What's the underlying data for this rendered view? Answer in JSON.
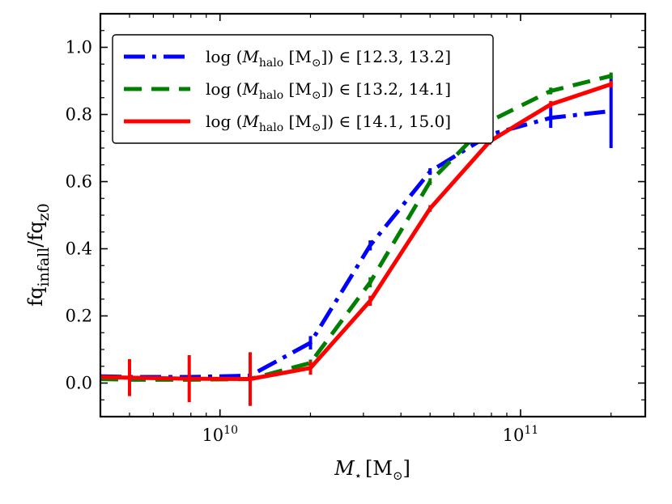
{
  "chart_data": {
    "type": "line",
    "title": "",
    "xscale": "log",
    "xlim": [
      4000000000.0,
      260000000000.0
    ],
    "ylim": [
      -0.1,
      1.1
    ],
    "ylabel": {
      "base": "fq",
      "sub1": "infall",
      "sep": "/fq",
      "sub2": "z0"
    },
    "xlabel": {
      "var": "M",
      "sub": "⋆",
      "unit": "[M",
      "sun": "⊙",
      "close": "]"
    },
    "xticks": [
      {
        "value": 10000000000.0,
        "base": "10",
        "exp": "10"
      },
      {
        "value": 100000000000.0,
        "base": "10",
        "exp": "11"
      }
    ],
    "yticks": [
      {
        "value": 0.0,
        "label": "0.0"
      },
      {
        "value": 0.2,
        "label": "0.2"
      },
      {
        "value": 0.4,
        "label": "0.4"
      },
      {
        "value": 0.6,
        "label": "0.6"
      },
      {
        "value": 0.8,
        "label": "0.8"
      },
      {
        "value": 1.0,
        "label": "1.0"
      }
    ],
    "legend_position": "top-left",
    "series": [
      {
        "name": "log (Mhalo [M⊙]) ∈ [12.3, 13.2]",
        "label_pre": "log (",
        "label_var": "M",
        "label_sub": "halo",
        "label_unit": " [M",
        "label_sun": "⊙",
        "label_post": "])",
        "label_in": "∈",
        "label_range": "[12.3, 13.2]",
        "color": "#0000ff",
        "dash": "26,9,5,9",
        "x": [
          4000000000.0,
          5000000000.0,
          7900000000.0,
          12600000000.0,
          20000000000.0,
          31600000000.0,
          50000000000.0,
          79000000000.0,
          126000000000.0,
          200000000000.0
        ],
        "y": [
          0.02,
          0.018,
          0.018,
          0.022,
          0.12,
          0.41,
          0.63,
          0.74,
          0.79,
          0.81
        ],
        "err": [
          0,
          0,
          0,
          0,
          0.02,
          0.015,
          0.01,
          0.02,
          0.03,
          0.11
        ]
      },
      {
        "name": "log (Mhalo [M⊙]) ∈ [13.2, 14.1]",
        "label_pre": "log (",
        "label_var": "M",
        "label_sub": "halo",
        "label_unit": " [M",
        "label_sun": "⊙",
        "label_post": "])",
        "label_in": "∈",
        "label_range": "[13.2, 14.1]",
        "color": "#008000",
        "dash": "22,12",
        "x": [
          4000000000.0,
          5000000000.0,
          7900000000.0,
          12600000000.0,
          20000000000.0,
          31600000000.0,
          50000000000.0,
          79000000000.0,
          126000000000.0,
          200000000000.0
        ],
        "y": [
          0.012,
          0.01,
          0.01,
          0.012,
          0.06,
          0.3,
          0.6,
          0.78,
          0.87,
          0.915
        ],
        "err": [
          0,
          0,
          0,
          0,
          0.01,
          0.015,
          0.01,
          0.01,
          0.01,
          0.01
        ]
      },
      {
        "name": "log (Mhalo [M⊙]) ∈ [14.1, 15.0]",
        "label_pre": "log (",
        "label_var": "M",
        "label_sub": "halo",
        "label_unit": " [M",
        "label_sun": "⊙",
        "label_post": "])",
        "label_in": "∈",
        "label_range": "[14.1, 15.0]",
        "color": "#ff0000",
        "dash": "",
        "x": [
          4000000000.0,
          5000000000.0,
          7900000000.0,
          12600000000.0,
          20000000000.0,
          31600000000.0,
          50000000000.0,
          79000000000.0,
          126000000000.0,
          200000000000.0
        ],
        "y": [
          0.018,
          0.016,
          0.013,
          0.012,
          0.045,
          0.245,
          0.52,
          0.72,
          0.83,
          0.89
        ],
        "err": [
          0,
          0.055,
          0.07,
          0.08,
          0.02,
          0.015,
          0.01,
          0.01,
          0.01,
          0.01
        ]
      }
    ]
  }
}
